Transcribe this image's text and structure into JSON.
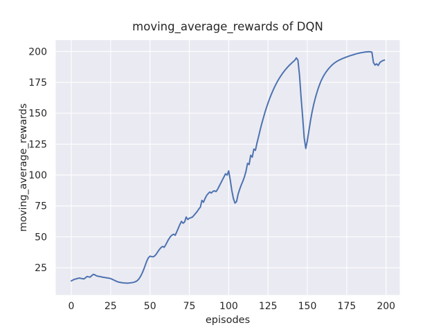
{
  "figure": {
    "title": "moving_average_rewards of DQN",
    "background_color": "#ffffff"
  },
  "chart_data": {
    "type": "line",
    "title": "moving_average_rewards of DQN",
    "xlabel": "episodes",
    "ylabel": "moving_average_rewards",
    "x_ticks": [
      0,
      25,
      50,
      75,
      100,
      125,
      150,
      175,
      200
    ],
    "y_ticks": [
      25,
      50,
      75,
      100,
      125,
      150,
      175,
      200
    ],
    "xlim": [
      -9.9,
      208.7
    ],
    "ylim": [
      2.9,
      209.2
    ],
    "grid": true,
    "legend": null,
    "style": {
      "plot_background": "#eaeaf2",
      "grid_color": "#ffffff",
      "line_color": "#4c72b0",
      "text_color": "#262626",
      "line_width": 2
    },
    "series": [
      {
        "name": "moving_average_rewards",
        "x_start": 0,
        "x_step": 1,
        "y": [
          14.3,
          15.0,
          15.6,
          15.9,
          16.3,
          16.6,
          16.4,
          16.1,
          15.9,
          16.8,
          17.9,
          17.6,
          17.4,
          18.6,
          19.6,
          19.2,
          18.4,
          18.1,
          17.9,
          17.6,
          17.3,
          17.1,
          16.9,
          16.7,
          16.5,
          16.2,
          15.6,
          15.0,
          14.4,
          13.8,
          13.4,
          13.1,
          12.9,
          12.7,
          12.6,
          12.5,
          12.5,
          12.6,
          12.8,
          13.0,
          13.3,
          13.8,
          14.6,
          16.0,
          18.0,
          20.5,
          23.5,
          27.0,
          30.5,
          33.0,
          34.3,
          34.0,
          33.8,
          34.5,
          36.0,
          38.0,
          39.8,
          41.3,
          42.2,
          41.5,
          43.5,
          46.0,
          48.3,
          50.2,
          51.4,
          52.1,
          51.2,
          54.0,
          57.0,
          60.0,
          62.5,
          61.0,
          62.0,
          66.0,
          64.0,
          65.0,
          65.5,
          66.0,
          67.5,
          69.0,
          70.5,
          72.5,
          74.0,
          79.5,
          78.0,
          81.0,
          83.5,
          85.0,
          86.3,
          85.4,
          86.8,
          87.2,
          86.6,
          88.5,
          91.0,
          93.5,
          96.0,
          98.5,
          101.0,
          100.0,
          103.3,
          96.0,
          87.5,
          81.0,
          77.3,
          78.5,
          84.5,
          88.5,
          92.0,
          95.0,
          98.5,
          103.0,
          109.5,
          108.5,
          116.0,
          114.5,
          121.0,
          120.0,
          126.0,
          131.0,
          136.5,
          141.5,
          146.0,
          150.5,
          154.5,
          158.3,
          161.8,
          165.0,
          168.0,
          170.8,
          173.4,
          175.8,
          178.0,
          180.0,
          181.9,
          183.6,
          185.2,
          186.7,
          188.1,
          189.4,
          190.6,
          191.8,
          192.9,
          194.8,
          193.0,
          181.0,
          163.0,
          147.0,
          130.0,
          121.5,
          128.0,
          136.0,
          144.0,
          151.0,
          157.0,
          162.0,
          166.5,
          170.5,
          174.0,
          177.0,
          179.5,
          181.7,
          183.6,
          185.3,
          186.8,
          188.2,
          189.4,
          190.5,
          191.4,
          192.2,
          192.9,
          193.5,
          194.1,
          194.6,
          195.1,
          195.6,
          196.1,
          196.5,
          196.9,
          197.3,
          197.7,
          198.1,
          198.4,
          198.7,
          199.0,
          199.2,
          199.4,
          199.6,
          199.7,
          199.8,
          199.7,
          199.5,
          191.0,
          189.0,
          190.0,
          188.7,
          190.9,
          192.0,
          192.7,
          193.0
        ]
      }
    ]
  }
}
